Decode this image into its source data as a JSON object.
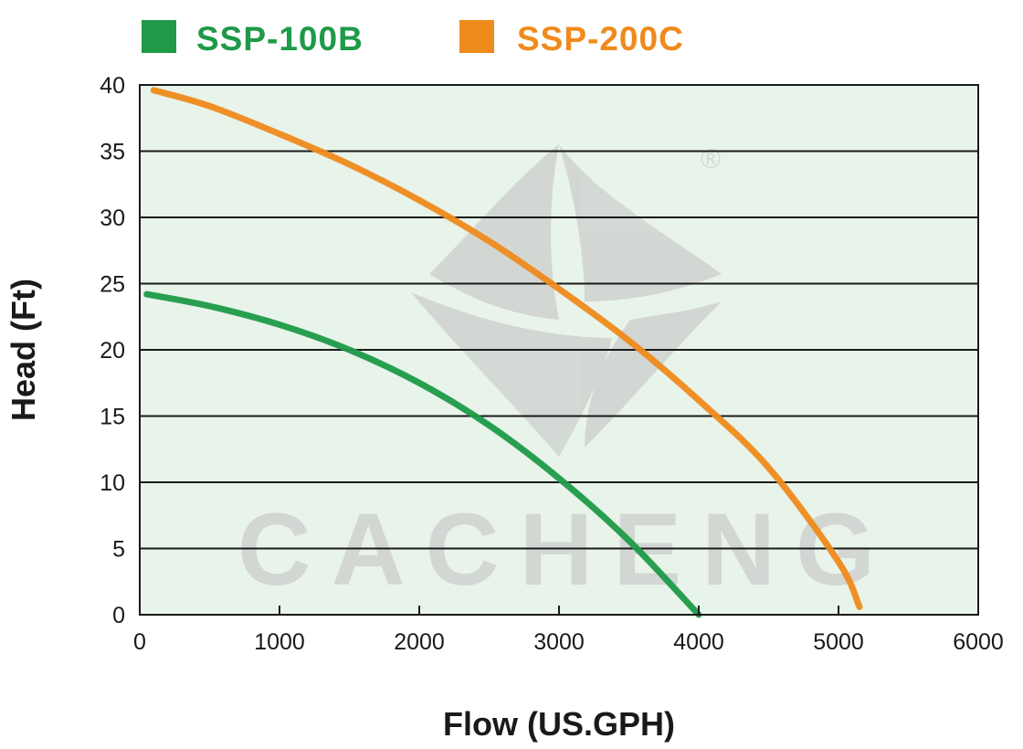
{
  "colors": {
    "plot_background": "#e8f3ea",
    "grid": "#1a1a1a",
    "watermark": "#cfd3d0"
  },
  "watermark": {
    "text": "CACHENG",
    "registered": "®"
  },
  "chart_data": {
    "type": "line",
    "xlabel": "Flow (US.GPH)",
    "ylabel": "Head (Ft)",
    "xlim": [
      0,
      6000
    ],
    "ylim": [
      0,
      40
    ],
    "xticks": [
      0,
      1000,
      2000,
      3000,
      4000,
      5000,
      6000
    ],
    "yticks": [
      0,
      5,
      10,
      15,
      20,
      25,
      30,
      35,
      40
    ],
    "grid": "horizontal",
    "legend_position": "top",
    "series": [
      {
        "name": "SSP-100B",
        "color": "#1e9a48",
        "x": [
          50,
          500,
          1000,
          1500,
          2000,
          2500,
          3000,
          3500,
          4000
        ],
        "y": [
          24.2,
          23.3,
          21.9,
          20.0,
          17.5,
          14.3,
          10.3,
          5.6,
          0
        ]
      },
      {
        "name": "SSP-200C",
        "color": "#ef8a1c",
        "x": [
          100,
          500,
          1000,
          1500,
          2000,
          2500,
          3000,
          3500,
          4000,
          4500,
          5000,
          5150
        ],
        "y": [
          39.6,
          38.4,
          36.3,
          34.0,
          31.3,
          28.2,
          24.6,
          20.7,
          16.2,
          11.1,
          4.0,
          0.6
        ]
      }
    ]
  }
}
